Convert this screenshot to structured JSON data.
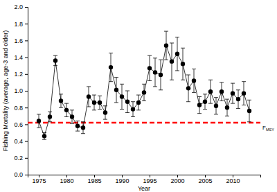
{
  "chart_data": {
    "type": "line",
    "x_label": "Year",
    "y_label": "Fishing Mortality (average, age-3 and older)",
    "x": [
      1975,
      1976,
      1977,
      1978,
      1979,
      1980,
      1981,
      1982,
      1983,
      1984,
      1985,
      1986,
      1987,
      1988,
      1989,
      1990,
      1991,
      1992,
      1993,
      1994,
      1995,
      1996,
      1997,
      1998,
      1999,
      2000,
      2001,
      2002,
      2003,
      2004,
      2005,
      2006,
      2007,
      2008,
      2009,
      2010,
      2011,
      2012,
      2013
    ],
    "series": [
      {
        "color": "#000000",
        "marker": "circle",
        "line_style": "solid",
        "values": [
          0.64,
          0.46,
          0.69,
          1.36,
          0.88,
          0.77,
          0.69,
          0.58,
          0.56,
          0.93,
          0.86,
          0.86,
          0.74,
          1.28,
          1.01,
          0.93,
          0.87,
          0.78,
          0.86,
          0.98,
          1.27,
          1.22,
          1.19,
          1.54,
          1.35,
          1.44,
          1.32,
          1.03,
          1.12,
          0.83,
          0.87,
          0.99,
          0.82,
          0.99,
          0.8,
          0.97,
          0.9,
          0.97,
          0.76
        ],
        "error": [
          0.08,
          0.04,
          0.06,
          0.06,
          0.08,
          0.08,
          0.08,
          0.06,
          0.07,
          0.12,
          0.09,
          0.08,
          0.08,
          0.17,
          0.15,
          0.15,
          0.13,
          0.09,
          0.09,
          0.1,
          0.15,
          0.17,
          0.18,
          0.17,
          0.22,
          0.2,
          0.19,
          0.16,
          0.14,
          0.1,
          0.09,
          0.14,
          0.1,
          0.11,
          0.1,
          0.12,
          0.11,
          0.14,
          0.13
        ]
      }
    ],
    "reference_line": {
      "value": 0.62,
      "label": "F",
      "label_subscript": "MSY",
      "color": "#ff0000",
      "line_style": "dashed"
    },
    "xlim": [
      1973,
      2015
    ],
    "xticks": [
      1975,
      1980,
      1985,
      1990,
      1995,
      2000,
      2005,
      2010
    ],
    "ylim": [
      0,
      2
    ],
    "yticks": [
      {
        "value": 0,
        "label": "0.0"
      },
      0.2,
      0.4,
      0.6,
      0.8,
      {
        "value": 1,
        "label": "1.0"
      },
      1.2,
      1.4,
      1.6,
      1.8,
      {
        "value": 2,
        "label": "2.0"
      }
    ],
    "grid": false
  }
}
